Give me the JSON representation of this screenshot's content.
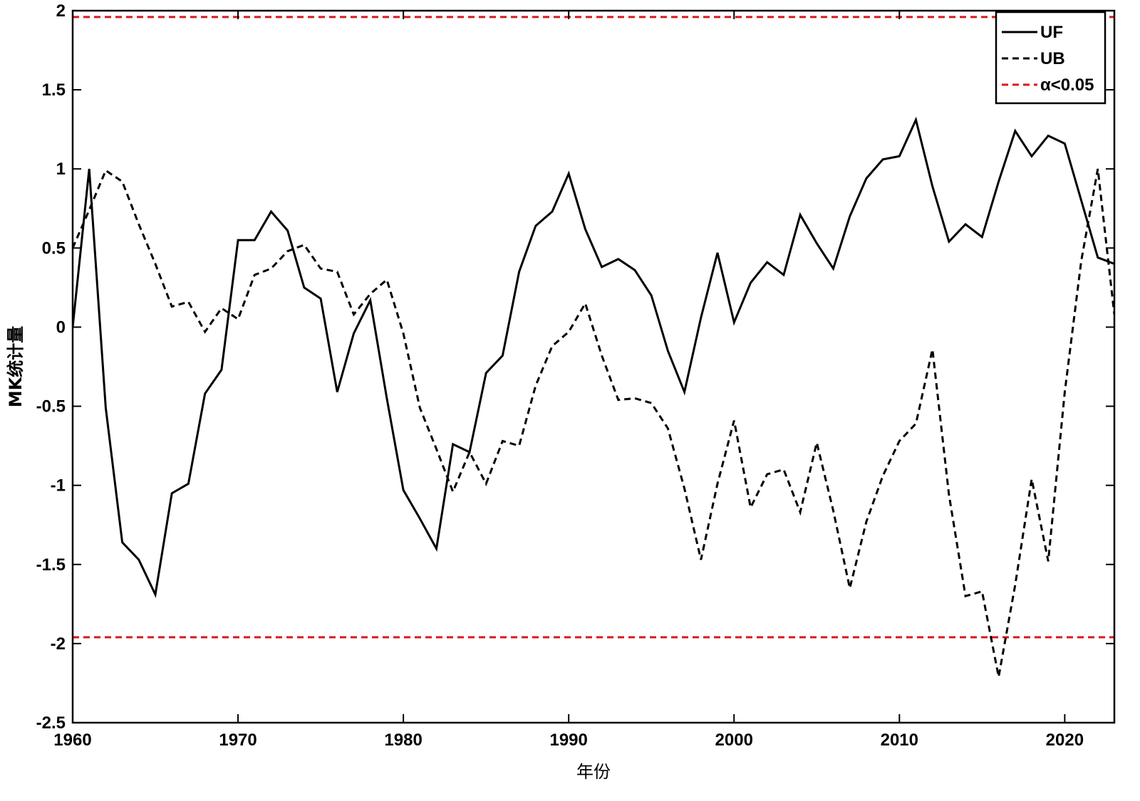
{
  "chart_data": {
    "type": "line",
    "title": "",
    "xlabel": "年份",
    "ylabel": "MK统计量",
    "xlim": [
      1960,
      2023
    ],
    "ylim": [
      -2.5,
      2
    ],
    "xticks": [
      1960,
      1970,
      1980,
      1990,
      2000,
      2010,
      2020
    ],
    "xtick_labels": [
      "1960",
      "1970",
      "1980",
      "1990",
      "2000",
      "2010",
      "2020"
    ],
    "yticks": [
      2,
      1.5,
      1,
      0.5,
      0,
      -0.5,
      -1,
      -1.5,
      -2,
      -2.5
    ],
    "ytick_labels": [
      "2",
      "1.5",
      "1",
      "0.5",
      "0",
      "-0.5",
      "-1",
      "-1.5",
      "-2",
      "-2.5"
    ],
    "grid": false,
    "legend_position": "top-right",
    "x": [
      1960,
      1961,
      1962,
      1963,
      1964,
      1965,
      1966,
      1967,
      1968,
      1969,
      1970,
      1971,
      1972,
      1973,
      1974,
      1975,
      1976,
      1977,
      1978,
      1979,
      1980,
      1981,
      1982,
      1983,
      1984,
      1985,
      1986,
      1987,
      1988,
      1989,
      1990,
      1991,
      1992,
      1993,
      1994,
      1995,
      1996,
      1997,
      1998,
      1999,
      2000,
      2001,
      2002,
      2003,
      2004,
      2005,
      2006,
      2007,
      2008,
      2009,
      2010,
      2011,
      2012,
      2013,
      2014,
      2015,
      2016,
      2017,
      2018,
      2019,
      2020,
      2021,
      2022,
      2023
    ],
    "series": [
      {
        "name": "UF",
        "style": "solid",
        "color": "#000000",
        "values": [
          0,
          1.0,
          -0.51,
          -1.36,
          -1.47,
          -1.69,
          -1.05,
          -0.99,
          -0.42,
          -0.27,
          0.55,
          0.55,
          0.73,
          0.61,
          0.25,
          0.18,
          -0.41,
          -0.04,
          0.17,
          -0.45,
          -1.03,
          -1.21,
          -1.4,
          -0.74,
          -0.79,
          -0.29,
          -0.18,
          0.35,
          0.64,
          0.73,
          0.97,
          0.62,
          0.38,
          0.43,
          0.36,
          0.2,
          -0.15,
          -0.41,
          0.06,
          0.47,
          0.03,
          0.28,
          0.41,
          0.33,
          0.71,
          0.53,
          0.37,
          0.7,
          0.94,
          1.06,
          1.08,
          1.31,
          0.89,
          0.54,
          0.65,
          0.57,
          0.92,
          1.24,
          1.08,
          1.21,
          1.16,
          0.8,
          0.44,
          0.4
        ]
      },
      {
        "name": "UB",
        "style": "dashed",
        "color": "#000000",
        "values": [
          0.5,
          0.74,
          0.99,
          0.92,
          0.65,
          0.4,
          0.13,
          0.16,
          -0.03,
          0.12,
          0.05,
          0.33,
          0.37,
          0.48,
          0.52,
          0.37,
          0.35,
          0.08,
          0.21,
          0.3,
          -0.04,
          -0.51,
          -0.77,
          -1.04,
          -0.79,
          -0.99,
          -0.72,
          -0.75,
          -0.37,
          -0.12,
          -0.03,
          0.15,
          -0.18,
          -0.46,
          -0.45,
          -0.48,
          -0.64,
          -1.02,
          -1.47,
          -0.99,
          -0.59,
          -1.14,
          -0.93,
          -0.9,
          -1.17,
          -0.73,
          -1.16,
          -1.65,
          -1.23,
          -0.94,
          -0.72,
          -0.61,
          -0.14,
          -1.06,
          -1.7,
          -1.67,
          -2.21,
          -1.63,
          -0.96,
          -1.48,
          -0.41,
          0.42,
          1.0,
          0.08
        ]
      }
    ],
    "reference_lines": {
      "name": "α<0.05",
      "style": "dashed",
      "color": "#d7191c",
      "values": [
        1.96,
        -1.96
      ]
    },
    "legend": [
      {
        "label": "UF",
        "style": "solid",
        "color": "#000000"
      },
      {
        "label": "UB",
        "style": "dashed",
        "color": "#000000"
      },
      {
        "label": "α<0.05",
        "style": "dashed",
        "color": "#d7191c"
      }
    ]
  }
}
